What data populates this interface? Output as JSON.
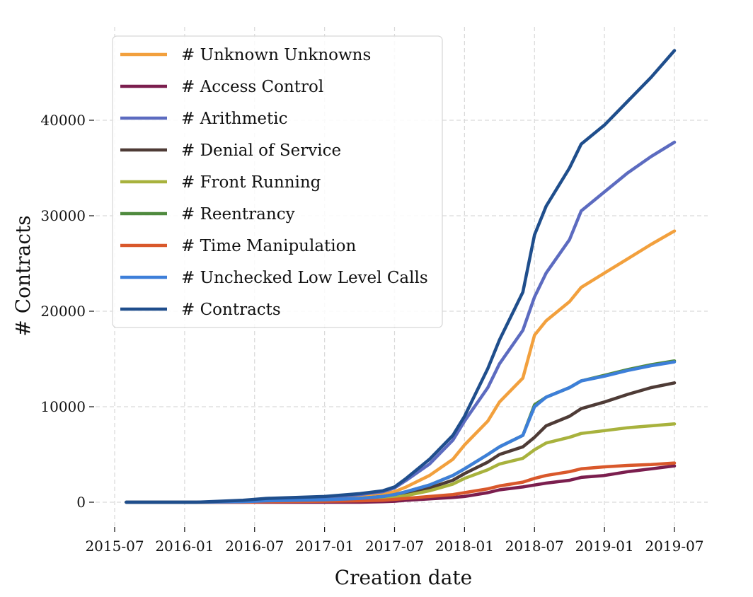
{
  "chart_data": {
    "type": "line",
    "xlabel": "Creation date",
    "ylabel": "# Contracts",
    "x_ticks": [
      "2015-07",
      "2016-01",
      "2016-07",
      "2017-01",
      "2017-07",
      "2018-01",
      "2018-07",
      "2019-01",
      "2019-07"
    ],
    "y_ticks": [
      0,
      10000,
      20000,
      30000,
      40000
    ],
    "xlim": [
      "2015-06-01",
      "2019-07-31"
    ],
    "ylim": [
      -2500,
      49500
    ],
    "grid": true,
    "legend_position": "top-left",
    "x": [
      "2015-08",
      "2016-02",
      "2016-06",
      "2016-08",
      "2017-01",
      "2017-04",
      "2017-06",
      "2017-07",
      "2017-08",
      "2017-10",
      "2017-12",
      "2018-01",
      "2018-03",
      "2018-04",
      "2018-06",
      "2018-07",
      "2018-08",
      "2018-10",
      "2018-11",
      "2019-01",
      "2019-03",
      "2019-05",
      "2019-07"
    ],
    "series": [
      {
        "name": "# Unknown Unknowns",
        "color": "#f2a03d",
        "values": [
          0,
          0,
          50,
          200,
          350,
          600,
          850,
          1100,
          1600,
          2800,
          4500,
          6000,
          8500,
          10500,
          13000,
          17500,
          19000,
          21000,
          22500,
          24000,
          25500,
          27000,
          28400
        ]
      },
      {
        "name": "# Access Control",
        "color": "#7b1e4e",
        "values": [
          0,
          0,
          0,
          0,
          0,
          0,
          50,
          100,
          200,
          350,
          500,
          600,
          1000,
          1300,
          1600,
          1800,
          2000,
          2300,
          2600,
          2800,
          3200,
          3500,
          3800
        ]
      },
      {
        "name": "# Arithmetic",
        "color": "#5c6bc0",
        "values": [
          0,
          0,
          100,
          300,
          500,
          800,
          1100,
          1500,
          2300,
          4000,
          6500,
          8500,
          12000,
          14500,
          18000,
          21500,
          24000,
          27500,
          30500,
          32500,
          34500,
          36200,
          37700
        ]
      },
      {
        "name": "# Denial of Service",
        "color": "#4e3b36",
        "values": [
          0,
          0,
          30,
          100,
          200,
          300,
          450,
          600,
          900,
          1500,
          2300,
          3000,
          4200,
          5000,
          5800,
          6800,
          8000,
          9000,
          9800,
          10500,
          11300,
          12000,
          12500
        ]
      },
      {
        "name": "# Front Running",
        "color": "#a8b23d",
        "values": [
          0,
          0,
          30,
          100,
          150,
          250,
          400,
          500,
          700,
          1200,
          1900,
          2500,
          3400,
          4000,
          4600,
          5500,
          6200,
          6800,
          7200,
          7500,
          7800,
          8000,
          8200
        ]
      },
      {
        "name": "# Reentrancy",
        "color": "#4f8a3e",
        "values": [
          0,
          0,
          50,
          150,
          250,
          400,
          600,
          800,
          1100,
          1800,
          2800,
          3500,
          5000,
          5800,
          7000,
          10200,
          11000,
          12000,
          12700,
          13300,
          13900,
          14400,
          14800
        ]
      },
      {
        "name": "# Time Manipulation",
        "color": "#d9582b",
        "values": [
          0,
          0,
          0,
          50,
          100,
          150,
          200,
          300,
          400,
          600,
          800,
          1000,
          1400,
          1700,
          2100,
          2500,
          2800,
          3200,
          3500,
          3700,
          3850,
          3950,
          4100
        ]
      },
      {
        "name": "# Unchecked Low Level Calls",
        "color": "#3d7fd9",
        "values": [
          0,
          0,
          50,
          150,
          250,
          400,
          600,
          800,
          1100,
          1800,
          2800,
          3500,
          5000,
          5800,
          7000,
          10000,
          11000,
          12000,
          12700,
          13200,
          13800,
          14300,
          14700
        ]
      },
      {
        "name": "# Contracts",
        "color": "#1f4e8c",
        "values": [
          0,
          0,
          200,
          400,
          600,
          900,
          1200,
          1600,
          2500,
          4500,
          7000,
          9000,
          14000,
          17000,
          22000,
          28000,
          31000,
          35000,
          37500,
          39500,
          42000,
          44500,
          47300
        ]
      }
    ]
  }
}
